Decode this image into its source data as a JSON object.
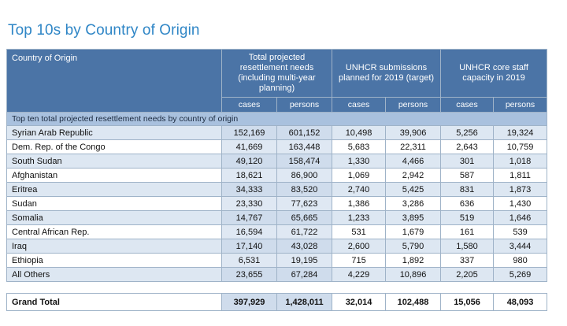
{
  "title": "Top 10s by Country of Origin",
  "header": {
    "origin": "Country of Origin",
    "group1": "Total projected resettlement needs (including multi-year planning)",
    "group2": "UNHCR submissions planned for 2019 (target)",
    "group3": "UNHCR core staff capacity in 2019",
    "cases": "cases",
    "persons": "persons"
  },
  "section_label": "Top ten total projected resettlement needs by country of origin",
  "rows": [
    {
      "country": "Syrian Arab Republic",
      "needs_cases": "152,169",
      "needs_persons": "601,152",
      "sub_cases": "10,498",
      "sub_persons": "39,906",
      "cap_cases": "5,256",
      "cap_persons": "19,324"
    },
    {
      "country": "Dem. Rep. of the Congo",
      "needs_cases": "41,669",
      "needs_persons": "163,448",
      "sub_cases": "5,683",
      "sub_persons": "22,311",
      "cap_cases": "2,643",
      "cap_persons": "10,759"
    },
    {
      "country": "South Sudan",
      "needs_cases": "49,120",
      "needs_persons": "158,474",
      "sub_cases": "1,330",
      "sub_persons": "4,466",
      "cap_cases": "301",
      "cap_persons": "1,018"
    },
    {
      "country": "Afghanistan",
      "needs_cases": "18,621",
      "needs_persons": "86,900",
      "sub_cases": "1,069",
      "sub_persons": "2,942",
      "cap_cases": "587",
      "cap_persons": "1,811"
    },
    {
      "country": "Eritrea",
      "needs_cases": "34,333",
      "needs_persons": "83,520",
      "sub_cases": "2,740",
      "sub_persons": "5,425",
      "cap_cases": "831",
      "cap_persons": "1,873"
    },
    {
      "country": "Sudan",
      "needs_cases": "23,330",
      "needs_persons": "77,623",
      "sub_cases": "1,386",
      "sub_persons": "3,286",
      "cap_cases": "636",
      "cap_persons": "1,430"
    },
    {
      "country": "Somalia",
      "needs_cases": "14,767",
      "needs_persons": "65,665",
      "sub_cases": "1,233",
      "sub_persons": "3,895",
      "cap_cases": "519",
      "cap_persons": "1,646"
    },
    {
      "country": "Central African Rep.",
      "needs_cases": "16,594",
      "needs_persons": "61,722",
      "sub_cases": "531",
      "sub_persons": "1,679",
      "cap_cases": "161",
      "cap_persons": "539"
    },
    {
      "country": "Iraq",
      "needs_cases": "17,140",
      "needs_persons": "43,028",
      "sub_cases": "2,600",
      "sub_persons": "5,790",
      "cap_cases": "1,580",
      "cap_persons": "3,444"
    },
    {
      "country": "Ethiopia",
      "needs_cases": "6,531",
      "needs_persons": "19,195",
      "sub_cases": "715",
      "sub_persons": "1,892",
      "cap_cases": "337",
      "cap_persons": "980"
    },
    {
      "country": "All Others",
      "needs_cases": "23,655",
      "needs_persons": "67,284",
      "sub_cases": "4,229",
      "sub_persons": "10,896",
      "cap_cases": "2,205",
      "cap_persons": "5,269"
    }
  ],
  "total": {
    "label": "Grand Total",
    "needs_cases": "397,929",
    "needs_persons": "1,428,011",
    "sub_cases": "32,014",
    "sub_persons": "102,488",
    "cap_cases": "15,056",
    "cap_persons": "48,093"
  },
  "colors": {
    "title": "#2f86c6",
    "header_bg": "#4b74a6",
    "section_bg": "#a9c1de",
    "stripe": "#dde7f2"
  }
}
